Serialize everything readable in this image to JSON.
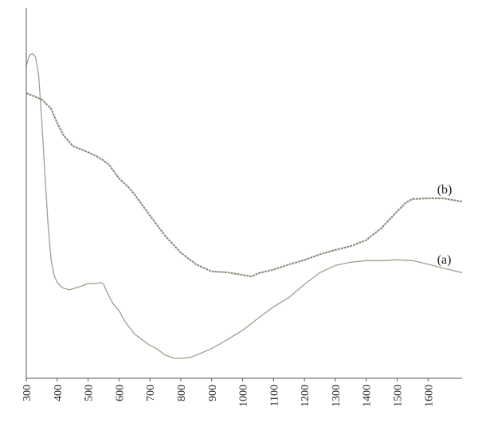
{
  "chart_data": {
    "type": "line",
    "title": "",
    "xlabel": "",
    "ylabel": "",
    "xlim": [
      300,
      1710
    ],
    "ylim": [
      0,
      100
    ],
    "grid": false,
    "xticks": [
      300,
      400,
      500,
      600,
      700,
      800,
      900,
      1000,
      1100,
      1200,
      1300,
      1400,
      1500,
      1600
    ],
    "series": [
      {
        "name": "(a)",
        "color": "#a39d8c",
        "x": [
          300,
          310,
          320,
          330,
          340,
          350,
          360,
          370,
          380,
          390,
          400,
          410,
          420,
          440,
          460,
          480,
          500,
          520,
          540,
          550,
          560,
          580,
          600,
          620,
          650,
          680,
          700,
          720,
          750,
          780,
          800,
          830,
          860,
          900,
          950,
          1000,
          1050,
          1100,
          1150,
          1200,
          1250,
          1300,
          1350,
          1400,
          1450,
          1500,
          1550,
          1600,
          1650,
          1710
        ],
        "y": [
          93.1,
          96.3,
          96.9,
          95.9,
          90.2,
          75.7,
          59.1,
          43.2,
          32.0,
          26.7,
          24.6,
          23.4,
          22.7,
          22.2,
          22.8,
          23.4,
          24.2,
          24.1,
          24.5,
          24.0,
          21.7,
          17.9,
          15.6,
          12.1,
          8.2,
          6.0,
          4.6,
          3.7,
          1.5,
          0.5,
          0.5,
          0.8,
          1.9,
          3.6,
          6.4,
          9.4,
          13.2,
          16.8,
          19.8,
          23.9,
          27.6,
          29.9,
          30.9,
          31.4,
          31.4,
          31.7,
          31.4,
          30.3,
          29.0,
          27.6
        ]
      },
      {
        "name": "(b)",
        "color": "#8c8578",
        "x": [
          300,
          320,
          350,
          380,
          400,
          420,
          450,
          480,
          500,
          530,
          550,
          570,
          600,
          630,
          650,
          700,
          750,
          800,
          850,
          900,
          950,
          1000,
          1030,
          1050,
          1100,
          1150,
          1200,
          1250,
          1300,
          1350,
          1400,
          1450,
          1500,
          1530,
          1550,
          1600,
          1650,
          1710
        ],
        "y": [
          84.4,
          83.6,
          82.4,
          79.5,
          75.0,
          71.1,
          67.7,
          66.5,
          65.7,
          64.3,
          63.1,
          61.5,
          57.4,
          54.7,
          52.4,
          45.7,
          39.2,
          33.9,
          30.2,
          28.0,
          27.7,
          26.9,
          26.4,
          27.4,
          28.6,
          30.2,
          31.6,
          33.4,
          34.8,
          36.0,
          37.9,
          41.8,
          47.0,
          49.9,
          50.9,
          51.1,
          51.1,
          50.1
        ]
      }
    ],
    "series_labels": [
      {
        "text": "(a)",
        "series": 0,
        "at_x": 1650
      },
      {
        "text": "(b)",
        "series": 1,
        "at_x": 1650
      }
    ]
  }
}
